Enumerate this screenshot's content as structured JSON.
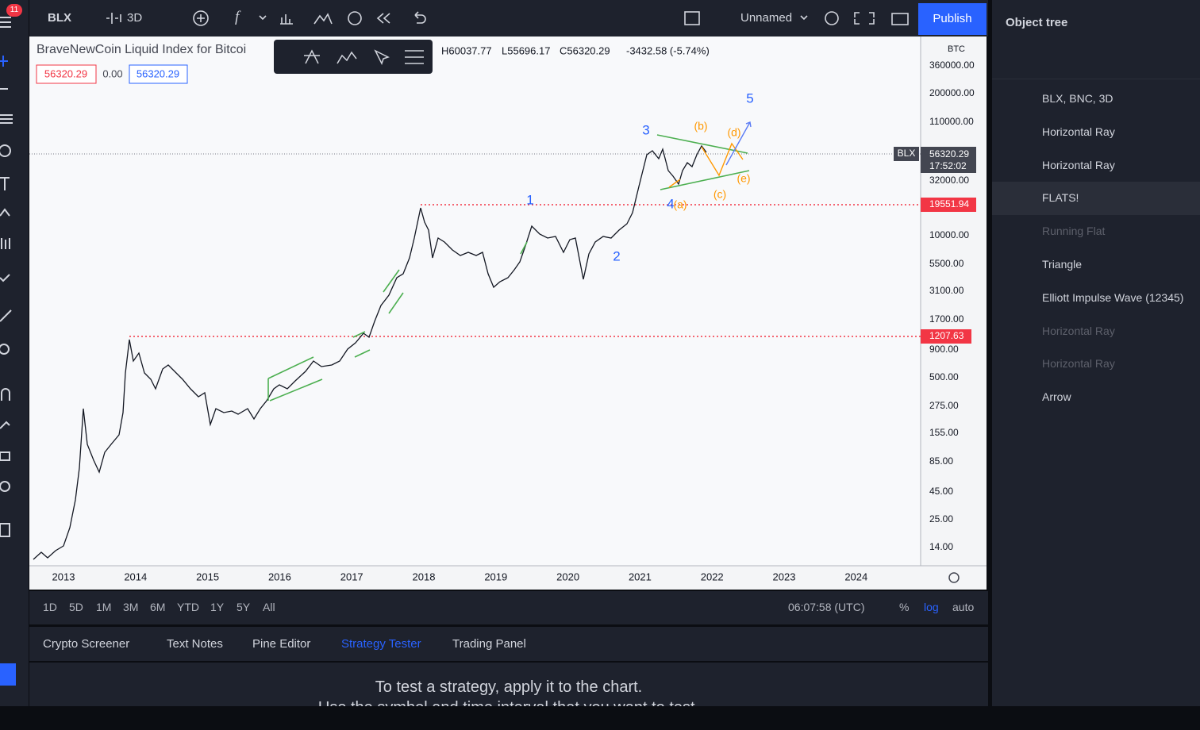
{
  "top_bar": {
    "badge": "11",
    "symbol": "BLX",
    "interval": "3D",
    "layout_name": "Unnamed",
    "publish": "Publish"
  },
  "chart": {
    "title": "BraveNewCoin Liquid Index for Bitcoi",
    "ohlc": [
      "H60037.77",
      "L55696.17",
      "C56320.29",
      "-3432.58 (-5.74%)"
    ],
    "boxes": [
      "56320.29",
      "0.00",
      "56320.29"
    ],
    "price_axis": {
      "currency": "BTC",
      "labels": [
        "360000.00",
        "200000.00",
        "110000.00",
        "32000.00",
        "10000.00",
        "5500.00",
        "3100.00",
        "1700.00",
        "900.00",
        "500.00",
        "275.00",
        "155.00",
        "85.00",
        "45.00",
        "25.00",
        "14.00"
      ],
      "symbol_tag": "BLX",
      "last_price": "56320.29",
      "countdown": "17:52:02",
      "level_1": "19551.94",
      "level_2": "1207.63"
    },
    "time_axis": [
      "2013",
      "2014",
      "2015",
      "2016",
      "2017",
      "2018",
      "2019",
      "2020",
      "2021",
      "2022",
      "2023",
      "2024"
    ],
    "wave_labels": [
      "5",
      "3",
      "1",
      "2",
      "4"
    ],
    "correction_labels": [
      "(b)",
      "(d)",
      "(e)",
      "(c)",
      "(a)"
    ]
  },
  "bottom_bar": {
    "ranges": [
      "1D",
      "5D",
      "1M",
      "3M",
      "6M",
      "YTD",
      "1Y",
      "5Y",
      "All"
    ],
    "clock": "06:07:58 (UTC)",
    "percent": "%",
    "log": "log",
    "auto": "auto"
  },
  "tabs": [
    "Crypto Screener",
    "Text Notes",
    "Pine Editor",
    "Strategy Tester",
    "Trading Panel"
  ],
  "panel": {
    "line_1": "To test a strategy, apply it to the chart.",
    "line_2": "Use the symbol and time interval that you want to test."
  },
  "object_tree": {
    "title": "Object tree",
    "items": [
      "BLX, BNC, 3D",
      "Horizontal Ray",
      "Horizontal Ray",
      "FLATS!",
      "Running Flat",
      "Triangle",
      "Elliott Impulse Wave (12345)",
      "Horizontal Ray",
      "Horizontal Ray",
      "Arrow"
    ]
  }
}
